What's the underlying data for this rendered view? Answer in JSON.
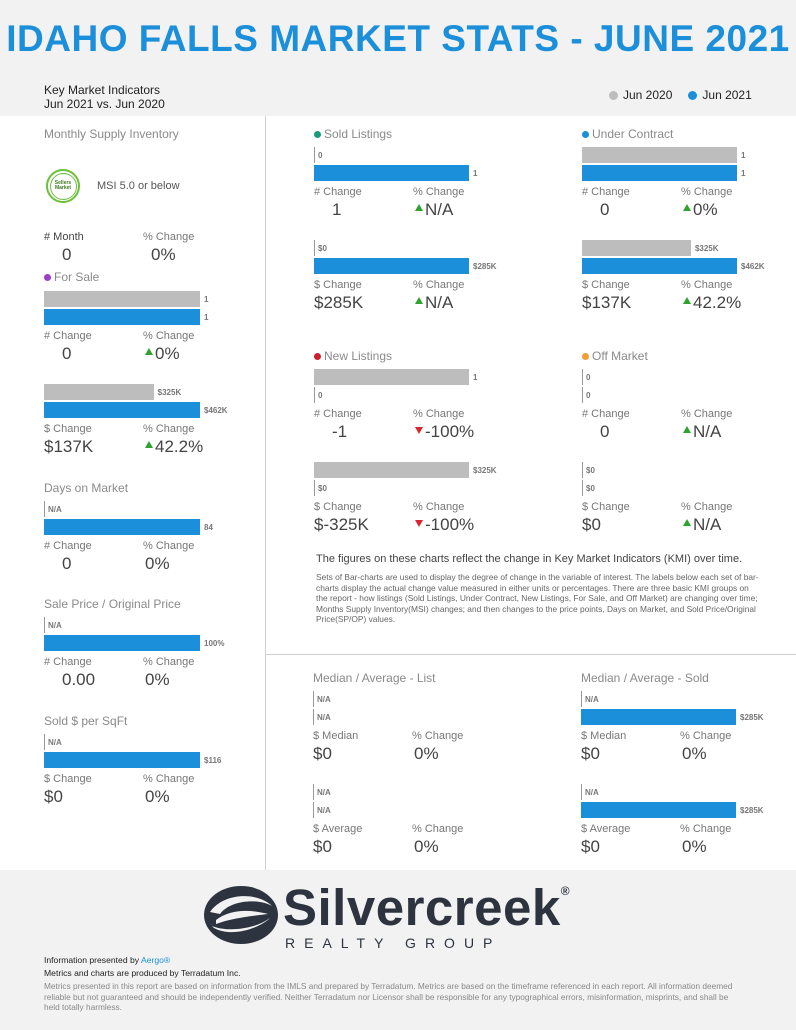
{
  "title": "IDAHO FALLS MARKET STATS - JUNE 2021",
  "subtitle_line1": "Key Market Indicators",
  "subtitle_line2": "Jun 2021 vs. Jun 2020",
  "legend": [
    {
      "label": "Jun 2020",
      "color": "#bdbdbd"
    },
    {
      "label": "Jun 2021",
      "color": "#1b8fd9"
    }
  ],
  "colors": {
    "prior": "#bdbdbd",
    "current": "#1b8fd9",
    "up": "#2ea32e",
    "down": "#d9262d",
    "title": "#1b8fd9"
  },
  "msi": {
    "title": "Monthly Supply Inventory",
    "badge": "Sellers Market",
    "badge_text": "MSI 5.0 or below",
    "col1_label": "# Month",
    "col1_value": "0",
    "col2_label": "% Change",
    "col2_value": "0%"
  },
  "for_sale": {
    "title": "For Sale",
    "dot_color": "#9b3fc5",
    "units": {
      "prior": "1",
      "current": "1",
      "prior_frac": 1.0,
      "current_frac": 1.0
    },
    "units_change_label": "# Change",
    "units_change": "0",
    "units_pct_label": "% Change",
    "units_pct": "0%",
    "units_dir": "up",
    "price": {
      "prior": "$325K",
      "current": "$462K",
      "prior_frac": 0.703,
      "current_frac": 1.0
    },
    "price_change_label": "$ Change",
    "price_change": "$137K",
    "price_pct_label": "% Change",
    "price_pct": "42.2%",
    "price_dir": "up"
  },
  "dom": {
    "title": "Days on Market",
    "prior": "N/A",
    "current": "84",
    "prior_frac": 0,
    "current_frac": 1.0,
    "change_label": "# Change",
    "change": "0",
    "pct_label": "% Change",
    "pct": "0%"
  },
  "sp_op": {
    "title": "Sale Price / Original Price",
    "prior": "N/A",
    "current": "100%",
    "prior_frac": 0,
    "current_frac": 1.0,
    "change_label": "# Change",
    "change": "0.00",
    "pct_label": "% Change",
    "pct": "0%"
  },
  "sqft": {
    "title": "Sold $ per SqFt",
    "prior": "N/A",
    "current": "$116",
    "prior_frac": 0,
    "current_frac": 1.0,
    "change_label": "$ Change",
    "change": "$0",
    "pct_label": "% Change",
    "pct": "0%"
  },
  "sold": {
    "title": "Sold Listings",
    "dot_color": "#1a9b7c",
    "units": {
      "prior": "0",
      "current": "1",
      "prior_frac": 0,
      "current_frac": 1.0
    },
    "units_change_label": "# Change",
    "units_change": "1",
    "units_pct_label": "% Change",
    "units_pct": "N/A",
    "units_dir": "up",
    "price": {
      "prior": "$0",
      "current": "$285K",
      "prior_frac": 0,
      "current_frac": 1.0
    },
    "price_change_label": "$ Change",
    "price_change": "$285K",
    "price_pct_label": "% Change",
    "price_pct": "N/A",
    "price_dir": "up"
  },
  "contract": {
    "title": "Under Contract",
    "dot_color": "#1b8fd9",
    "units": {
      "prior": "1",
      "current": "1",
      "prior_frac": 1.0,
      "current_frac": 1.0
    },
    "units_change_label": "# Change",
    "units_change": "0",
    "units_pct_label": "% Change",
    "units_pct": "0%",
    "units_dir": "up",
    "price": {
      "prior": "$325K",
      "current": "$462K",
      "prior_frac": 0.703,
      "current_frac": 1.0
    },
    "price_change_label": "$ Change",
    "price_change": "$137K",
    "price_pct_label": "% Change",
    "price_pct": "42.2%",
    "price_dir": "up"
  },
  "new_listings": {
    "title": "New Listings",
    "dot_color": "#cc1f2d",
    "units": {
      "prior": "1",
      "current": "0",
      "prior_frac": 1.0,
      "current_frac": 0
    },
    "units_change_label": "# Change",
    "units_change": "-1",
    "units_pct_label": "% Change",
    "units_pct": "-100%",
    "units_dir": "down",
    "price": {
      "prior": "$325K",
      "current": "$0",
      "prior_frac": 1.0,
      "current_frac": 0
    },
    "price_change_label": "$ Change",
    "price_change": "$-325K",
    "price_pct_label": "% Change",
    "price_pct": "-100%",
    "price_dir": "down"
  },
  "off_market": {
    "title": "Off Market",
    "dot_color": "#f39c33",
    "units": {
      "prior": "0",
      "current": "0",
      "prior_frac": 0,
      "current_frac": 0
    },
    "units_change_label": "# Change",
    "units_change": "0",
    "units_pct_label": "% Change",
    "units_pct": "N/A",
    "units_dir": "up",
    "price": {
      "prior": "$0",
      "current": "$0",
      "prior_frac": 0,
      "current_frac": 0
    },
    "price_change_label": "$ Change",
    "price_change": "$0",
    "price_pct_label": "% Change",
    "price_pct": "N/A",
    "price_dir": "up"
  },
  "note_head": "The figures on these charts reflect the change in Key Market Indicators (KMI) over time.",
  "note_body": "Sets of Bar-charts are used to display the degree of change in the variable of interest. The labels below each set of bar-charts display the actual change value measured in either units or percentages. There are three basic KMI groups on the report - how listings (Sold Listings, Under Contract, New Listings, For Sale, and Off Market) are changing over time; Months Supply Inventory(MSI) changes; and then changes to the price points, Days on Market, and Sold Price/Original Price(SP/OP) values.",
  "med_list": {
    "title": "Median / Average - List",
    "median_prior": "N/A",
    "median_current": "N/A",
    "median_prior_frac": 0,
    "median_current_frac": 0,
    "median_label": "$ Median",
    "median_change": "$0",
    "median_pct_label": "% Change",
    "median_pct": "0%",
    "avg_prior": "N/A",
    "avg_current": "N/A",
    "avg_prior_frac": 0,
    "avg_current_frac": 0,
    "avg_label": "$ Average",
    "avg_change": "$0",
    "avg_pct_label": "% Change",
    "avg_pct": "0%"
  },
  "med_sold": {
    "title": "Median / Average - Sold",
    "median_prior": "N/A",
    "median_current": "$285K",
    "median_prior_frac": 0,
    "median_current_frac": 1.0,
    "median_label": "$ Median",
    "median_change": "$0",
    "median_pct_label": "% Change",
    "median_pct": "0%",
    "avg_prior": "N/A",
    "avg_current": "$285K",
    "avg_prior_frac": 0,
    "avg_current_frac": 1.0,
    "avg_label": "$ Average",
    "avg_change": "$0",
    "avg_pct_label": "% Change",
    "avg_pct": "0%"
  },
  "logo": {
    "name": "Silvercreek",
    "reg": "®",
    "tagline": "REALTY GROUP"
  },
  "footer": {
    "presented_by": "Information presented by ",
    "presenter": "Aergo®",
    "produced": "Metrics and charts are produced by Terradatum Inc.",
    "disclaimer": "Metrics presented in this report are based on information from the IMLS and prepared by Terradatum. Metrics are based on the timeframe referenced in each report. All information deemed reliable but not guaranteed and should be independently verified. Neither Terradatum nor Licensor shall be responsible for any typographical errors, misinformation, misprints, and shall be held totally harmless."
  }
}
